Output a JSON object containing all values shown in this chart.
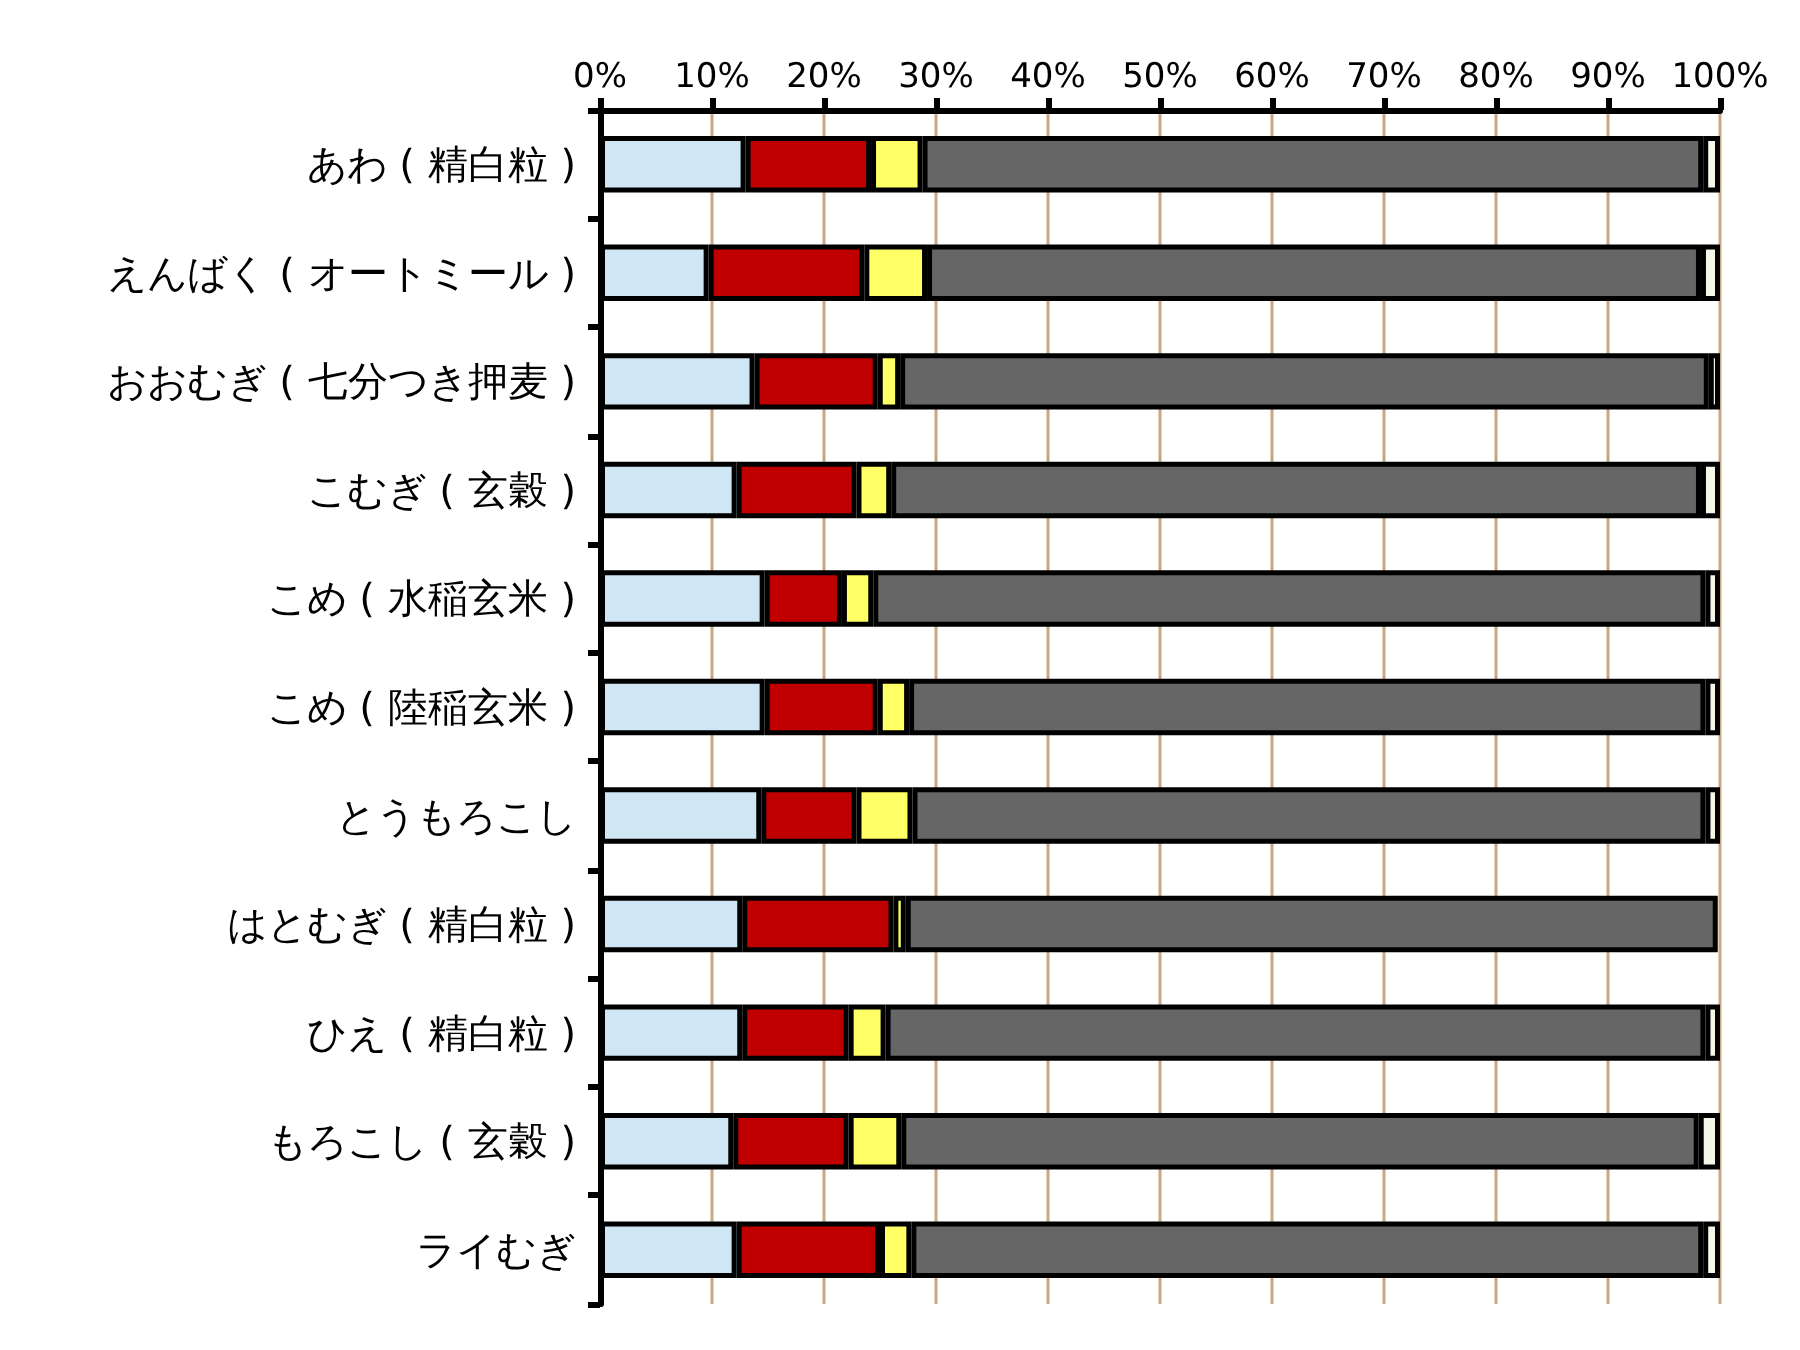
{
  "chart_data": {
    "type": "bar",
    "orientation": "horizontal",
    "stacked": true,
    "categories": [
      "あわ ( 精白粒 )",
      "えんばく ( オートミール )",
      "おおむぎ ( 七分つき押麦 )",
      "こむぎ ( 玄穀 )",
      "こめ ( 水稲玄米 )",
      "こめ ( 陸稲玄米 )",
      "とうもろこし",
      "はとむぎ ( 精白粒 )",
      "ひえ ( 精白粒 )",
      "もろこし ( 玄穀 )",
      "ライむぎ"
    ],
    "series": [
      {
        "color": "#cfe6f5",
        "values": [
          13.0,
          9.7,
          13.8,
          12.2,
          14.7,
          14.7,
          14.4,
          12.7,
          12.7,
          11.9,
          12.2
        ]
      },
      {
        "color": "#c00000",
        "values": [
          11.2,
          13.9,
          11.0,
          10.7,
          6.9,
          10.1,
          8.5,
          13.5,
          9.5,
          10.3,
          12.8
        ]
      },
      {
        "color": "#ffff66",
        "values": [
          4.6,
          5.6,
          2.0,
          3.1,
          2.8,
          2.8,
          5.0,
          1.1,
          3.3,
          4.7,
          2.8
        ]
      },
      {
        "color": "#666666",
        "values": [
          69.7,
          69.1,
          72.2,
          72.3,
          74.3,
          71.1,
          70.8,
          72.5,
          73.2,
          71.2,
          70.7
        ]
      },
      {
        "color": "#f5f5e8",
        "values": [
          1.5,
          1.7,
          1.0,
          1.7,
          1.3,
          1.3,
          1.3,
          null,
          1.3,
          1.9,
          1.5
        ]
      }
    ],
    "xlim": [
      0,
      100
    ],
    "xticks": [
      {
        "value": 0,
        "label": "0%"
      },
      {
        "value": 10,
        "label": "10%"
      },
      {
        "value": 20,
        "label": "20%"
      },
      {
        "value": 30,
        "label": "30%"
      },
      {
        "value": 40,
        "label": "40%"
      },
      {
        "value": 50,
        "label": "50%"
      },
      {
        "value": 60,
        "label": "60%"
      },
      {
        "value": 70,
        "label": "70%"
      },
      {
        "value": 80,
        "label": "80%"
      },
      {
        "value": 90,
        "label": "90%"
      },
      {
        "value": 100,
        "label": "100%"
      }
    ],
    "grid": "x"
  }
}
